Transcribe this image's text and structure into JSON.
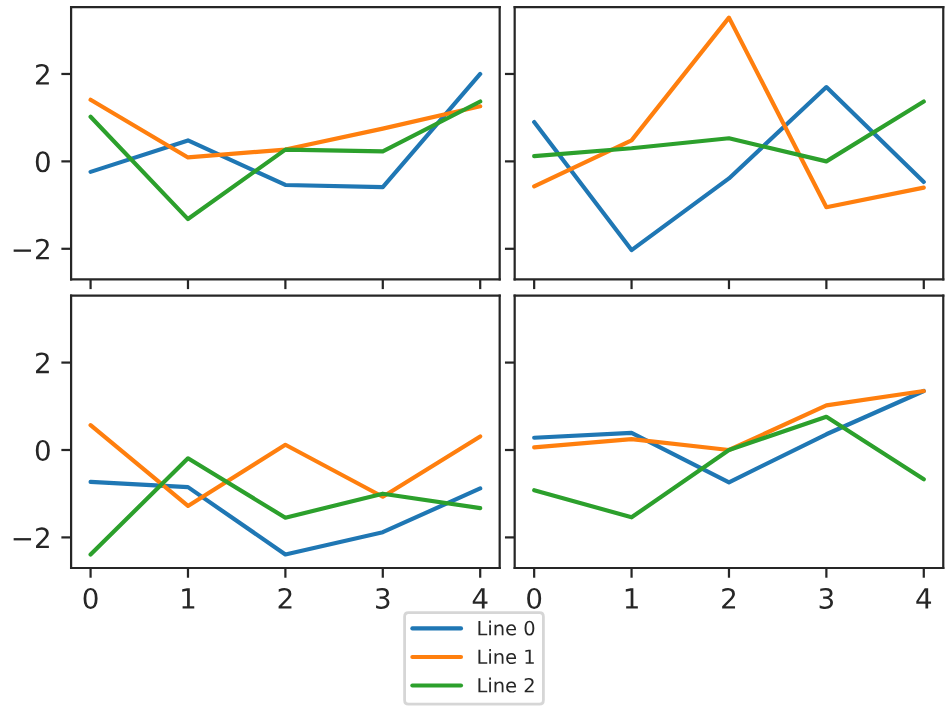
{
  "chart_data": [
    {
      "type": "line",
      "x": [
        0,
        1,
        2,
        3,
        4
      ],
      "xlim": [
        -0.2,
        4.2
      ],
      "ylim": [
        -2.7,
        3.53
      ],
      "xticks": [
        0,
        1,
        2,
        3,
        4
      ],
      "yticks": [
        {
          "value": -2,
          "label": "−2"
        },
        0,
        2
      ],
      "tick_labels": "y",
      "legend": "bottom",
      "series": [
        {
          "name": "Line 0",
          "color": "#1f77b4",
          "values": [
            -0.24,
            0.48,
            -0.54,
            -0.59,
            2.0
          ]
        },
        {
          "name": "Line 1",
          "color": "#ff7f0e",
          "values": [
            1.41,
            0.09,
            0.27,
            0.75,
            1.26
          ]
        },
        {
          "name": "Line 2",
          "color": "#2ca02c",
          "values": [
            1.02,
            -1.32,
            0.27,
            0.23,
            1.37
          ]
        }
      ]
    },
    {
      "type": "line",
      "x": [
        0,
        1,
        2,
        3,
        4
      ],
      "xlim": [
        -0.2,
        4.2
      ],
      "ylim": [
        -2.7,
        3.53
      ],
      "xticks": [
        0,
        1,
        2,
        3,
        4
      ],
      "yticks": [
        -2,
        0,
        2
      ],
      "tick_labels": false,
      "series": [
        {
          "color": "#1f77b4",
          "values": [
            0.9,
            -2.03,
            -0.39,
            1.7,
            -0.47
          ]
        },
        {
          "color": "#ff7f0e",
          "values": [
            -0.57,
            0.48,
            3.29,
            -1.05,
            -0.6
          ]
        },
        {
          "color": "#2ca02c",
          "values": [
            0.12,
            0.3,
            0.53,
            0.0,
            1.37
          ]
        }
      ]
    },
    {
      "type": "line",
      "x": [
        0,
        1,
        2,
        3,
        4
      ],
      "xlim": [
        -0.2,
        4.2
      ],
      "ylim": [
        -2.7,
        3.53
      ],
      "xticks": [
        0,
        1,
        2,
        3,
        4
      ],
      "yticks": [
        {
          "value": -2,
          "label": "−2"
        },
        0,
        2
      ],
      "series": [
        {
          "color": "#1f77b4",
          "values": [
            -0.73,
            -0.85,
            -2.39,
            -1.88,
            -0.88
          ]
        },
        {
          "color": "#ff7f0e",
          "values": [
            0.57,
            -1.28,
            0.12,
            -1.07,
            0.31
          ]
        },
        {
          "color": "#2ca02c",
          "values": [
            -2.39,
            -0.19,
            -1.55,
            -1.0,
            -1.33
          ]
        }
      ]
    },
    {
      "type": "line",
      "x": [
        0,
        1,
        2,
        3,
        4
      ],
      "xlim": [
        -0.2,
        4.2
      ],
      "ylim": [
        -2.7,
        3.53
      ],
      "xticks": [
        0,
        1,
        2,
        3,
        4
      ],
      "yticks": [
        -2,
        0,
        2
      ],
      "tick_labels": "x",
      "series": [
        {
          "color": "#1f77b4",
          "values": [
            0.28,
            0.39,
            -0.74,
            0.36,
            1.35
          ]
        },
        {
          "color": "#ff7f0e",
          "values": [
            0.06,
            0.25,
            0.0,
            1.02,
            1.35
          ]
        },
        {
          "color": "#2ca02c",
          "values": [
            -0.92,
            -1.54,
            0.0,
            0.76,
            -0.67
          ]
        }
      ]
    }
  ]
}
